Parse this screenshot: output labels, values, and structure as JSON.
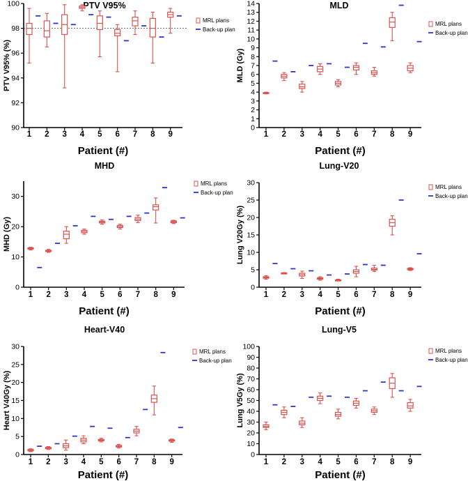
{
  "colors": {
    "mrl": "#d9534f",
    "backup": "#2b35c8",
    "axis": "#000000"
  },
  "chart_data": [
    {
      "type": "box",
      "title": "PTV V95%",
      "ylabel": "PTV  V95%  (%)",
      "xlabel": "Patient (#)",
      "ylim": [
        90,
        100
      ],
      "yticks": [
        90,
        92,
        94,
        96,
        98,
        100
      ],
      "categories": [
        "1",
        "2",
        "3",
        "4",
        "5",
        "6",
        "7",
        "8",
        "9"
      ],
      "reference_line": 98,
      "legend": [
        "MRL plans",
        "Back-up plan"
      ],
      "mrl": [
        {
          "min": 95.2,
          "q1": 97.5,
          "median": 98.0,
          "q3": 98.4,
          "max": 99.6
        },
        {
          "min": 96.5,
          "q1": 97.3,
          "median": 97.8,
          "q3": 98.6,
          "max": 99.2
        },
        {
          "min": 93.2,
          "q1": 97.5,
          "median": 98.3,
          "q3": 99.1,
          "max": 99.9
        },
        {
          "min": 99.4,
          "q1": 99.6,
          "median": 99.7,
          "q3": 99.8,
          "max": 99.9
        },
        {
          "min": 95.7,
          "q1": 97.9,
          "median": 98.4,
          "q3": 99.0,
          "max": 99.4
        },
        {
          "min": 94.5,
          "q1": 97.4,
          "median": 97.6,
          "q3": 97.9,
          "max": 98.3
        },
        {
          "min": 97.5,
          "q1": 98.2,
          "median": 98.6,
          "q3": 98.9,
          "max": 99.4
        },
        {
          "min": 95.2,
          "q1": 97.3,
          "median": 98.0,
          "q3": 98.8,
          "max": 99.3
        },
        {
          "min": 97.6,
          "q1": 98.9,
          "median": 99.1,
          "q3": 99.3,
          "max": 99.6
        }
      ],
      "backup": [
        99.0,
        98.4,
        98.3,
        99.1,
        98.9,
        97.0,
        98.2,
        97.3,
        99.0
      ]
    },
    {
      "type": "box",
      "title": "MLD",
      "ylabel": "MLD (Gy)",
      "xlabel": "Patient (#)",
      "ylim": [
        0,
        14
      ],
      "yticks": [
        0,
        1,
        2,
        3,
        4,
        5,
        6,
        7,
        8,
        9,
        10,
        11,
        12,
        13,
        14
      ],
      "categories": [
        "1",
        "2",
        "3",
        "4",
        "5",
        "6",
        "7",
        "8",
        "9"
      ],
      "legend": [
        "MRL plans",
        "Back-up plan"
      ],
      "mrl": [
        {
          "min": 3.8,
          "q1": 3.85,
          "median": 3.9,
          "q3": 3.95,
          "max": 4.0
        },
        {
          "min": 5.3,
          "q1": 5.6,
          "median": 5.8,
          "q3": 6.0,
          "max": 6.2
        },
        {
          "min": 4.0,
          "q1": 4.4,
          "median": 4.6,
          "q3": 4.9,
          "max": 5.2
        },
        {
          "min": 6.0,
          "q1": 6.3,
          "median": 6.6,
          "q3": 6.9,
          "max": 7.2
        },
        {
          "min": 4.6,
          "q1": 4.8,
          "median": 5.0,
          "q3": 5.2,
          "max": 5.4
        },
        {
          "min": 6.0,
          "q1": 6.5,
          "median": 6.8,
          "q3": 7.0,
          "max": 7.3
        },
        {
          "min": 5.8,
          "q1": 6.0,
          "median": 6.2,
          "q3": 6.4,
          "max": 6.8
        },
        {
          "min": 9.8,
          "q1": 11.3,
          "median": 11.9,
          "q3": 12.4,
          "max": 13.0
        },
        {
          "min": 6.2,
          "q1": 6.4,
          "median": 6.7,
          "q3": 7.0,
          "max": 7.3
        }
      ],
      "backup": [
        7.5,
        6.3,
        7.0,
        7.2,
        6.8,
        9.5,
        9.1,
        13.8,
        9.7
      ]
    },
    {
      "type": "box",
      "title": "MHD",
      "ylabel": "MHD (Gy)",
      "xlabel": "Patient (#)",
      "ylim": [
        0,
        35
      ],
      "yticks": [
        0,
        10,
        20,
        30
      ],
      "categories": [
        "1",
        "2",
        "3",
        "4",
        "5",
        "6",
        "7",
        "8",
        "9"
      ],
      "legend": [
        "MRL plans",
        "Back-up plan"
      ],
      "mrl": [
        {
          "min": 12.3,
          "q1": 12.6,
          "median": 12.8,
          "q3": 13.0,
          "max": 13.2
        },
        {
          "min": 11.5,
          "q1": 11.8,
          "median": 12.0,
          "q3": 12.2,
          "max": 12.5
        },
        {
          "min": 14.5,
          "q1": 16.0,
          "median": 17.5,
          "q3": 18.5,
          "max": 20.0
        },
        {
          "min": 17.5,
          "q1": 18.0,
          "median": 18.4,
          "q3": 18.8,
          "max": 19.2
        },
        {
          "min": 20.8,
          "q1": 21.2,
          "median": 21.5,
          "q3": 21.8,
          "max": 22.2
        },
        {
          "min": 19.2,
          "q1": 19.7,
          "median": 20.0,
          "q3": 20.4,
          "max": 20.8
        },
        {
          "min": 21.3,
          "q1": 22.0,
          "median": 22.5,
          "q3": 23.0,
          "max": 23.8
        },
        {
          "min": 21.2,
          "q1": 25.5,
          "median": 26.6,
          "q3": 27.2,
          "max": 29.5
        },
        {
          "min": 21.0,
          "q1": 21.3,
          "median": 21.6,
          "q3": 21.9,
          "max": 22.1
        }
      ],
      "backup": [
        6.5,
        14.5,
        20.3,
        23.4,
        22.4,
        23.4,
        24.5,
        32.9,
        22.9
      ]
    },
    {
      "type": "box",
      "title": "Lung-V20",
      "ylabel": "Lung V20Gy (%)",
      "xlabel": "Patient (#)",
      "ylim": [
        0,
        30
      ],
      "yticks": [
        0,
        5,
        10,
        15,
        20,
        25,
        30
      ],
      "categories": [
        "1",
        "2",
        "3",
        "4",
        "5",
        "6",
        "7",
        "8",
        "9"
      ],
      "legend": [
        "MRL plans",
        "Back-up plan"
      ],
      "mrl": [
        {
          "min": 2.3,
          "q1": 2.6,
          "median": 2.8,
          "q3": 3.0,
          "max": 3.3
        },
        {
          "min": 3.8,
          "q1": 3.9,
          "median": 4.0,
          "q3": 4.1,
          "max": 4.2
        },
        {
          "min": 2.5,
          "q1": 3.2,
          "median": 3.6,
          "q3": 4.0,
          "max": 4.6
        },
        {
          "min": 2.0,
          "q1": 2.3,
          "median": 2.5,
          "q3": 2.7,
          "max": 3.0
        },
        {
          "min": 1.8,
          "q1": 1.9,
          "median": 2.0,
          "q3": 2.1,
          "max": 2.3
        },
        {
          "min": 3.0,
          "q1": 4.0,
          "median": 4.5,
          "q3": 5.0,
          "max": 6.0
        },
        {
          "min": 4.5,
          "q1": 4.9,
          "median": 5.1,
          "q3": 5.5,
          "max": 6.3
        },
        {
          "min": 15.0,
          "q1": 17.5,
          "median": 18.5,
          "q3": 19.5,
          "max": 20.5
        },
        {
          "min": 4.8,
          "q1": 5.0,
          "median": 5.2,
          "q3": 5.4,
          "max": 5.6
        }
      ],
      "backup": [
        6.8,
        5.3,
        4.7,
        3.5,
        3.8,
        6.5,
        6.3,
        25.0,
        9.6
      ]
    },
    {
      "type": "box",
      "title": "Heart-V40",
      "ylabel": "Heart V40Gy (%)",
      "xlabel": "Patient (#)",
      "ylim": [
        0,
        30
      ],
      "yticks": [
        0,
        5,
        10,
        15,
        20,
        25,
        30
      ],
      "categories": [
        "1",
        "2",
        "3",
        "4",
        "5",
        "6",
        "7",
        "8",
        "9"
      ],
      "legend": [
        "MRL plans",
        "Back-up plan"
      ],
      "mrl": [
        {
          "min": 0.8,
          "q1": 1.0,
          "median": 1.2,
          "q3": 1.4,
          "max": 1.6
        },
        {
          "min": 1.4,
          "q1": 1.6,
          "median": 1.8,
          "q3": 2.0,
          "max": 2.2
        },
        {
          "min": 1.2,
          "q1": 1.9,
          "median": 2.4,
          "q3": 3.0,
          "max": 4.0
        },
        {
          "min": 3.0,
          "q1": 3.5,
          "median": 4.0,
          "q3": 4.5,
          "max": 5.2
        },
        {
          "min": 3.5,
          "q1": 3.8,
          "median": 4.0,
          "q3": 4.2,
          "max": 4.5
        },
        {
          "min": 1.8,
          "q1": 2.1,
          "median": 2.3,
          "q3": 2.5,
          "max": 2.8
        },
        {
          "min": 5.2,
          "q1": 6.0,
          "median": 6.5,
          "q3": 7.0,
          "max": 7.8
        },
        {
          "min": 11.0,
          "q1": 14.5,
          "median": 15.5,
          "q3": 16.5,
          "max": 19.0
        },
        {
          "min": 3.4,
          "q1": 3.7,
          "median": 3.9,
          "q3": 4.1,
          "max": 4.3
        }
      ],
      "backup": [
        2.3,
        3.0,
        5.1,
        7.8,
        7.3,
        4.7,
        12.5,
        28.3,
        7.5
      ]
    },
    {
      "type": "box",
      "title": "Lung-V5",
      "ylabel": "Lung V5Gy (%)",
      "xlabel": "Patient (#)",
      "ylim": [
        0,
        100
      ],
      "yticks": [
        0,
        10,
        20,
        30,
        40,
        50,
        60,
        70,
        80,
        90,
        100
      ],
      "categories": [
        "1",
        "2",
        "3",
        "4",
        "5",
        "6",
        "7",
        "8",
        "9"
      ],
      "legend": [
        "MRL plans",
        "Back-up plan"
      ],
      "mrl": [
        {
          "min": 23.0,
          "q1": 25.0,
          "median": 26.0,
          "q3": 27.5,
          "max": 30.0
        },
        {
          "min": 34.0,
          "q1": 37.0,
          "median": 39.0,
          "q3": 41.0,
          "max": 44.0
        },
        {
          "min": 25.0,
          "q1": 27.5,
          "median": 29.0,
          "q3": 31.0,
          "max": 34.0
        },
        {
          "min": 47.0,
          "q1": 50.0,
          "median": 52.0,
          "q3": 54.0,
          "max": 57.0
        },
        {
          "min": 33.0,
          "q1": 35.5,
          "median": 37.0,
          "q3": 39.0,
          "max": 42.0
        },
        {
          "min": 43.0,
          "q1": 45.5,
          "median": 47.5,
          "q3": 49.5,
          "max": 52.0
        },
        {
          "min": 37.0,
          "q1": 39.0,
          "median": 40.5,
          "q3": 42.0,
          "max": 44.0
        },
        {
          "min": 53.0,
          "q1": 61.0,
          "median": 66.0,
          "q3": 71.0,
          "max": 75.0
        },
        {
          "min": 40.0,
          "q1": 43.0,
          "median": 45.0,
          "q3": 48.0,
          "max": 51.0
        }
      ],
      "backup": [
        46.0,
        44.5,
        53.0,
        54.0,
        53.0,
        59.0,
        67.0,
        59.0,
        63.0
      ]
    }
  ]
}
